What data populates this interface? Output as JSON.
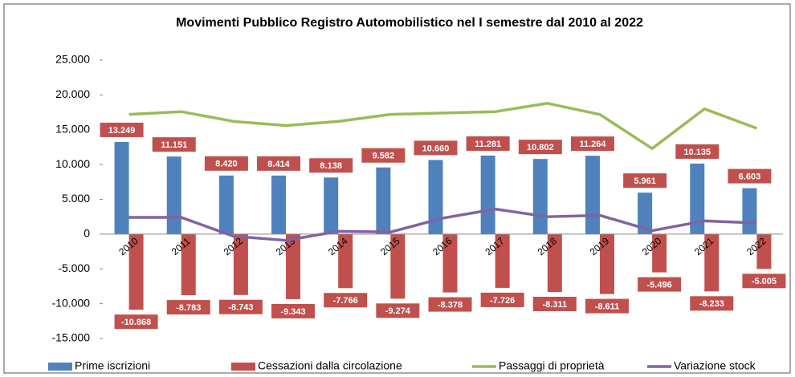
{
  "chart_data": {
    "type": "bar",
    "title": "Movimenti Pubblico Registro Automobilistico nel I semestre dal 2010 al 2022",
    "categories": [
      "2010",
      "2011",
      "2012",
      "2013",
      "2014",
      "2015",
      "2016",
      "2017",
      "2018",
      "2019",
      "2020",
      "2021",
      "2022"
    ],
    "series": [
      {
        "name": "Prime iscrizioni",
        "type": "bar",
        "color": "#4f81bd",
        "values": [
          13249,
          11151,
          8420,
          8414,
          8138,
          9582,
          10660,
          11281,
          10802,
          11264,
          5961,
          10135,
          6603
        ],
        "value_labels": [
          "13.249",
          "11.151",
          "8.420",
          "8.414",
          "8.138",
          "9.582",
          "10.660",
          "11.281",
          "10.802",
          "11.264",
          "5.961",
          "10.135",
          "6.603"
        ]
      },
      {
        "name": "Cessazioni dalla circolazione",
        "type": "bar",
        "color": "#c0504d",
        "values": [
          -10868,
          -8783,
          -8743,
          -9343,
          -7766,
          -9274,
          -8378,
          -7726,
          -8311,
          -8611,
          -5496,
          -8233,
          -5005
        ],
        "value_labels": [
          "-10.868",
          "-8.783",
          "-8.743",
          "-9.343",
          "-7.766",
          "-9.274",
          "-8.378",
          "-7.726",
          "-8.311",
          "-8.611",
          "-5.496",
          "-8.233",
          "-5.005"
        ]
      },
      {
        "name": "Passaggi di proprietà",
        "type": "line",
        "color": "#9bbb59",
        "values": [
          17200,
          17600,
          16200,
          15600,
          16200,
          17200,
          17400,
          17600,
          18800,
          17200,
          12300,
          18000,
          15200
        ]
      },
      {
        "name": "Variazione stock",
        "type": "line",
        "color": "#8064a2",
        "values": [
          2400,
          2400,
          -300,
          -900,
          400,
          300,
          2300,
          3600,
          2500,
          2700,
          500,
          1900,
          1600
        ]
      }
    ],
    "ylim": [
      -15000,
      25000
    ],
    "yticks": [
      {
        "value": -15000,
        "label": "-15.000"
      },
      {
        "value": -10000,
        "label": "-10.000"
      },
      {
        "value": -5000,
        "label": "-5.000"
      },
      0,
      {
        "value": 5000,
        "label": "5.000"
      },
      {
        "value": 10000,
        "label": "10.000"
      },
      {
        "value": 15000,
        "label": "15.000"
      },
      {
        "value": 20000,
        "label": "20.000"
      },
      {
        "value": 25000,
        "label": "25.000"
      }
    ],
    "grid": false
  }
}
